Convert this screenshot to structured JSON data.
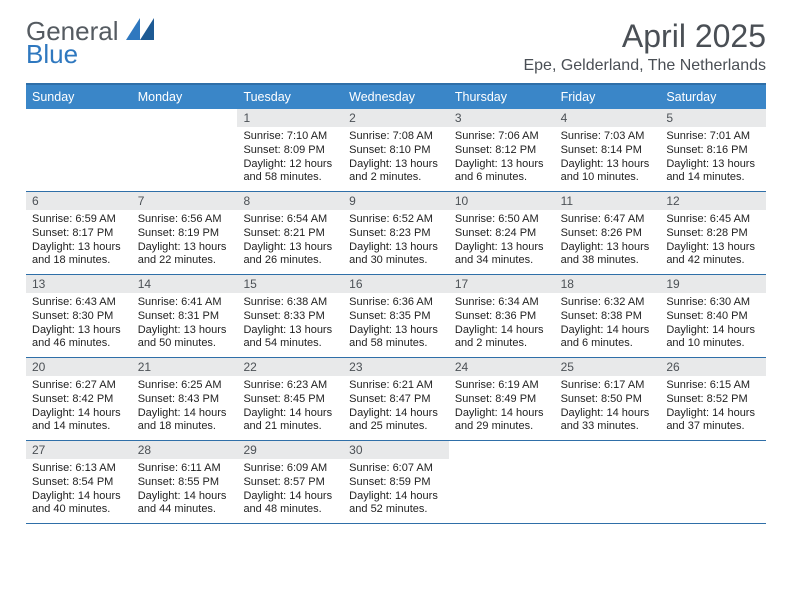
{
  "brand": {
    "word1": "General",
    "word2": "Blue"
  },
  "title": "April 2025",
  "subtitle": "Epe, Gelderland, The Netherlands",
  "colors": {
    "header_bar": "#3a86c8",
    "row_divider": "#2f6fa8",
    "daynum_bg": "#e8e9ea",
    "text": "#222222",
    "title_text": "#4a4f55",
    "brand_gray": "#555b61",
    "brand_blue": "#2f78bf"
  },
  "dow": [
    "Sunday",
    "Monday",
    "Tuesday",
    "Wednesday",
    "Thursday",
    "Friday",
    "Saturday"
  ],
  "weeks": [
    [
      {
        "blank": true
      },
      {
        "blank": true
      },
      {
        "day": "1",
        "sunrise": "Sunrise: 7:10 AM",
        "sunset": "Sunset: 8:09 PM",
        "daylight": "Daylight: 12 hours and 58 minutes."
      },
      {
        "day": "2",
        "sunrise": "Sunrise: 7:08 AM",
        "sunset": "Sunset: 8:10 PM",
        "daylight": "Daylight: 13 hours and 2 minutes."
      },
      {
        "day": "3",
        "sunrise": "Sunrise: 7:06 AM",
        "sunset": "Sunset: 8:12 PM",
        "daylight": "Daylight: 13 hours and 6 minutes."
      },
      {
        "day": "4",
        "sunrise": "Sunrise: 7:03 AM",
        "sunset": "Sunset: 8:14 PM",
        "daylight": "Daylight: 13 hours and 10 minutes."
      },
      {
        "day": "5",
        "sunrise": "Sunrise: 7:01 AM",
        "sunset": "Sunset: 8:16 PM",
        "daylight": "Daylight: 13 hours and 14 minutes."
      }
    ],
    [
      {
        "day": "6",
        "sunrise": "Sunrise: 6:59 AM",
        "sunset": "Sunset: 8:17 PM",
        "daylight": "Daylight: 13 hours and 18 minutes."
      },
      {
        "day": "7",
        "sunrise": "Sunrise: 6:56 AM",
        "sunset": "Sunset: 8:19 PM",
        "daylight": "Daylight: 13 hours and 22 minutes."
      },
      {
        "day": "8",
        "sunrise": "Sunrise: 6:54 AM",
        "sunset": "Sunset: 8:21 PM",
        "daylight": "Daylight: 13 hours and 26 minutes."
      },
      {
        "day": "9",
        "sunrise": "Sunrise: 6:52 AM",
        "sunset": "Sunset: 8:23 PM",
        "daylight": "Daylight: 13 hours and 30 minutes."
      },
      {
        "day": "10",
        "sunrise": "Sunrise: 6:50 AM",
        "sunset": "Sunset: 8:24 PM",
        "daylight": "Daylight: 13 hours and 34 minutes."
      },
      {
        "day": "11",
        "sunrise": "Sunrise: 6:47 AM",
        "sunset": "Sunset: 8:26 PM",
        "daylight": "Daylight: 13 hours and 38 minutes."
      },
      {
        "day": "12",
        "sunrise": "Sunrise: 6:45 AM",
        "sunset": "Sunset: 8:28 PM",
        "daylight": "Daylight: 13 hours and 42 minutes."
      }
    ],
    [
      {
        "day": "13",
        "sunrise": "Sunrise: 6:43 AM",
        "sunset": "Sunset: 8:30 PM",
        "daylight": "Daylight: 13 hours and 46 minutes."
      },
      {
        "day": "14",
        "sunrise": "Sunrise: 6:41 AM",
        "sunset": "Sunset: 8:31 PM",
        "daylight": "Daylight: 13 hours and 50 minutes."
      },
      {
        "day": "15",
        "sunrise": "Sunrise: 6:38 AM",
        "sunset": "Sunset: 8:33 PM",
        "daylight": "Daylight: 13 hours and 54 minutes."
      },
      {
        "day": "16",
        "sunrise": "Sunrise: 6:36 AM",
        "sunset": "Sunset: 8:35 PM",
        "daylight": "Daylight: 13 hours and 58 minutes."
      },
      {
        "day": "17",
        "sunrise": "Sunrise: 6:34 AM",
        "sunset": "Sunset: 8:36 PM",
        "daylight": "Daylight: 14 hours and 2 minutes."
      },
      {
        "day": "18",
        "sunrise": "Sunrise: 6:32 AM",
        "sunset": "Sunset: 8:38 PM",
        "daylight": "Daylight: 14 hours and 6 minutes."
      },
      {
        "day": "19",
        "sunrise": "Sunrise: 6:30 AM",
        "sunset": "Sunset: 8:40 PM",
        "daylight": "Daylight: 14 hours and 10 minutes."
      }
    ],
    [
      {
        "day": "20",
        "sunrise": "Sunrise: 6:27 AM",
        "sunset": "Sunset: 8:42 PM",
        "daylight": "Daylight: 14 hours and 14 minutes."
      },
      {
        "day": "21",
        "sunrise": "Sunrise: 6:25 AM",
        "sunset": "Sunset: 8:43 PM",
        "daylight": "Daylight: 14 hours and 18 minutes."
      },
      {
        "day": "22",
        "sunrise": "Sunrise: 6:23 AM",
        "sunset": "Sunset: 8:45 PM",
        "daylight": "Daylight: 14 hours and 21 minutes."
      },
      {
        "day": "23",
        "sunrise": "Sunrise: 6:21 AM",
        "sunset": "Sunset: 8:47 PM",
        "daylight": "Daylight: 14 hours and 25 minutes."
      },
      {
        "day": "24",
        "sunrise": "Sunrise: 6:19 AM",
        "sunset": "Sunset: 8:49 PM",
        "daylight": "Daylight: 14 hours and 29 minutes."
      },
      {
        "day": "25",
        "sunrise": "Sunrise: 6:17 AM",
        "sunset": "Sunset: 8:50 PM",
        "daylight": "Daylight: 14 hours and 33 minutes."
      },
      {
        "day": "26",
        "sunrise": "Sunrise: 6:15 AM",
        "sunset": "Sunset: 8:52 PM",
        "daylight": "Daylight: 14 hours and 37 minutes."
      }
    ],
    [
      {
        "day": "27",
        "sunrise": "Sunrise: 6:13 AM",
        "sunset": "Sunset: 8:54 PM",
        "daylight": "Daylight: 14 hours and 40 minutes."
      },
      {
        "day": "28",
        "sunrise": "Sunrise: 6:11 AM",
        "sunset": "Sunset: 8:55 PM",
        "daylight": "Daylight: 14 hours and 44 minutes."
      },
      {
        "day": "29",
        "sunrise": "Sunrise: 6:09 AM",
        "sunset": "Sunset: 8:57 PM",
        "daylight": "Daylight: 14 hours and 48 minutes."
      },
      {
        "day": "30",
        "sunrise": "Sunrise: 6:07 AM",
        "sunset": "Sunset: 8:59 PM",
        "daylight": "Daylight: 14 hours and 52 minutes."
      },
      {
        "blank": true
      },
      {
        "blank": true
      },
      {
        "blank": true
      }
    ]
  ]
}
